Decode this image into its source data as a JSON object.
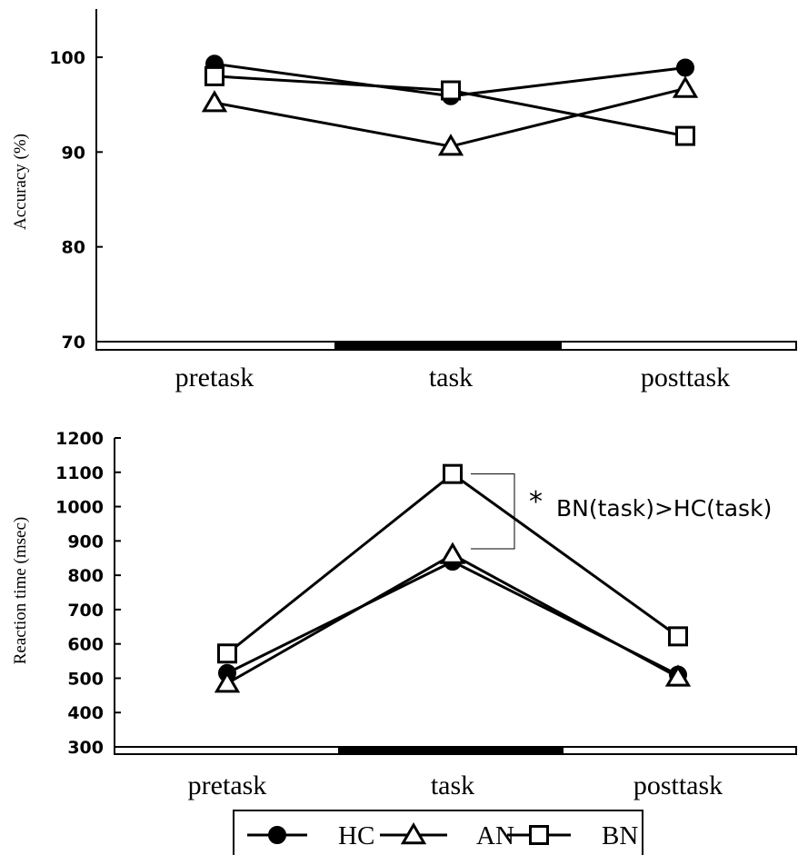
{
  "chart_data": [
    {
      "type": "line",
      "title": "",
      "xlabel": "",
      "ylabel": "Accuracy (%)",
      "categories": [
        "pretask",
        "task",
        "posttask"
      ],
      "ylim": [
        70,
        105
      ],
      "yticks": [
        "70",
        "80",
        "90",
        "100"
      ],
      "grid": false,
      "series": [
        {
          "name": "HC",
          "marker": "filled-circle",
          "values": [
            99.3,
            95.9,
            98.9
          ]
        },
        {
          "name": "AN",
          "marker": "open-triangle",
          "values": [
            95.2,
            90.6,
            96.7
          ]
        },
        {
          "name": "BN",
          "marker": "open-square",
          "values": [
            98.0,
            96.5,
            91.7
          ]
        }
      ],
      "phase_bar": [
        "white",
        "black",
        "white"
      ]
    },
    {
      "type": "line",
      "title": "",
      "xlabel": "",
      "ylabel": "Reaction time (msec)",
      "categories": [
        "pretask",
        "task",
        "posttask"
      ],
      "ylim": [
        300,
        1200
      ],
      "yticks": [
        "300",
        "400",
        "500",
        "600",
        "700",
        "800",
        "900",
        "1000",
        "1100",
        "1200"
      ],
      "grid": false,
      "series": [
        {
          "name": "HC",
          "marker": "filled-circle",
          "values": [
            515,
            840,
            510
          ]
        },
        {
          "name": "AN",
          "marker": "open-triangle",
          "values": [
            485,
            860,
            503
          ]
        },
        {
          "name": "BN",
          "marker": "open-square",
          "values": [
            572,
            1095,
            622
          ]
        }
      ],
      "annotation": {
        "star": "*",
        "text": "BN(task)>HC(task)"
      },
      "phase_bar": [
        "white",
        "black",
        "white"
      ]
    }
  ],
  "legend": {
    "placement": "bottom",
    "items": [
      {
        "label": "HC",
        "marker": "filled-circle"
      },
      {
        "label": "AN",
        "marker": "open-triangle"
      },
      {
        "label": "BN",
        "marker": "open-square"
      }
    ]
  },
  "colors": {
    "line": "#000000",
    "background": "#ffffff"
  }
}
